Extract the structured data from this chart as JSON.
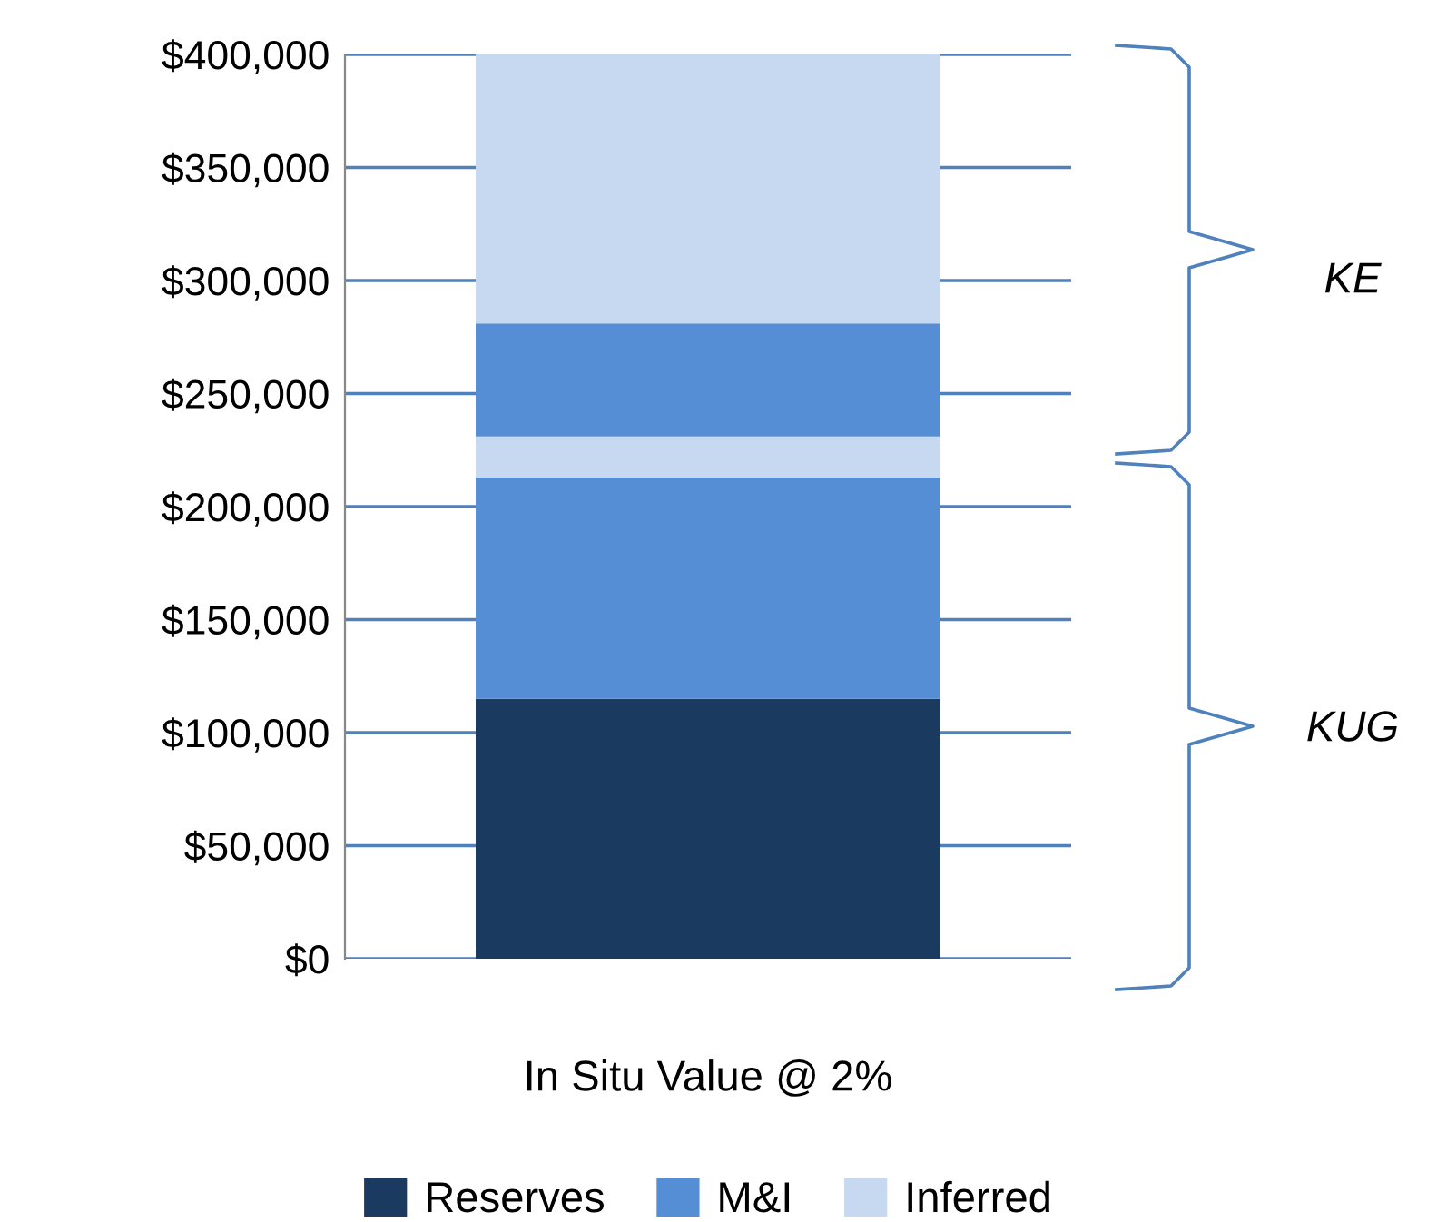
{
  "chart_data": {
    "type": "bar",
    "stacked": true,
    "categories": [
      "In Situ Value @ 2%"
    ],
    "series": [
      {
        "name": "Reserves",
        "color": "#1b3a5f",
        "values": [
          115000
        ]
      },
      {
        "name": "M&I",
        "color": "#558ed5",
        "values": [
          98000
        ]
      },
      {
        "name": "Inferred",
        "color": "#c6d9f0",
        "values": [
          18000
        ]
      },
      {
        "color": "#558ed5",
        "values": [
          50000
        ]
      },
      {
        "color": "#c6d9f0",
        "values": [
          119000
        ]
      }
    ],
    "ylim": [
      0,
      400000
    ],
    "yticks": [
      {
        "value": 0,
        "label": "$0"
      },
      {
        "value": 50000,
        "label": "$50,000"
      },
      {
        "value": 100000,
        "label": "$100,000"
      },
      {
        "value": 150000,
        "label": "$150,000"
      },
      {
        "value": 200000,
        "label": "$200,000"
      },
      {
        "value": 250000,
        "label": "$250,000"
      },
      {
        "value": 300000,
        "label": "$300,000"
      },
      {
        "value": 350000,
        "label": "$350,000"
      },
      {
        "value": 400000,
        "label": "$400,000"
      }
    ],
    "grid": "y",
    "legend": "bottom",
    "annotations": [
      "KE",
      "KUG"
    ]
  }
}
